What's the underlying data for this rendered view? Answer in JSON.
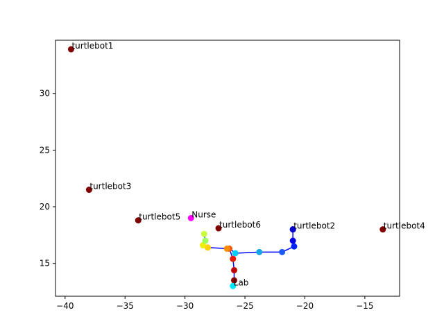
{
  "chart_data": {
    "type": "scatter",
    "title": "",
    "xlabel": "",
    "ylabel": "",
    "xlim": [
      -40.8,
      -12.1
    ],
    "ylim": [
      12.1,
      34.7
    ],
    "xticks": [
      -40,
      -35,
      -30,
      -25,
      -20,
      -15
    ],
    "yticks": [
      15,
      20,
      25,
      30
    ],
    "xtick_labels": [
      "−40",
      "−35",
      "−30",
      "−25",
      "−20",
      "−15"
    ],
    "ytick_labels": [
      "15",
      "20",
      "25",
      "30"
    ],
    "grid": false,
    "legend": "none",
    "labeled_points": [
      {
        "label": "turtlebot1",
        "x": -39.5,
        "y": 33.9,
        "color": "#800000"
      },
      {
        "label": "turtlebot3",
        "x": -38.0,
        "y": 21.5,
        "color": "#800000"
      },
      {
        "label": "turtlebot5",
        "x": -33.9,
        "y": 18.8,
        "color": "#800000"
      },
      {
        "label": "Nurse",
        "x": -29.5,
        "y": 19.0,
        "color": "#ff00ff"
      },
      {
        "label": "turtlebot6",
        "x": -27.2,
        "y": 18.1,
        "color": "#800000"
      },
      {
        "label": "turtlebot2",
        "x": -21.0,
        "y": 18.0,
        "color": "#0000cd"
      },
      {
        "label": "turtlebot4",
        "x": -13.5,
        "y": 18.0,
        "color": "#800000"
      },
      {
        "label": "Lab",
        "x": -26.0,
        "y": 13.0,
        "color": "#00e5ff"
      }
    ],
    "path": {
      "color": "#0000ff",
      "points": [
        {
          "x": -21.0,
          "y": 18.0,
          "color": "#0000cd"
        },
        {
          "x": -21.0,
          "y": 17.0,
          "color": "#0000e0"
        },
        {
          "x": -20.9,
          "y": 16.5,
          "color": "#0022ff"
        },
        {
          "x": -21.9,
          "y": 16.0,
          "color": "#1e5cff"
        },
        {
          "x": -23.8,
          "y": 16.0,
          "color": "#16a5e8"
        },
        {
          "x": -25.8,
          "y": 15.9,
          "color": "#00cfff"
        },
        {
          "x": -26.3,
          "y": 16.3,
          "color": "#ff5a00"
        },
        {
          "x": -26.5,
          "y": 16.3,
          "color": "#ff8c00"
        },
        {
          "x": -28.1,
          "y": 16.4,
          "color": "#ffd000"
        },
        {
          "x": -28.5,
          "y": 16.6,
          "color": "#f2ee00"
        },
        {
          "x": -28.3,
          "y": 17.0,
          "color": "#9dff5a"
        },
        {
          "x": -28.4,
          "y": 17.6,
          "color": "#c8ff3c"
        },
        {
          "x": -26.0,
          "y": 15.4,
          "color": "#e81a00"
        },
        {
          "x": -25.9,
          "y": 14.4,
          "color": "#c00000"
        },
        {
          "x": -25.9,
          "y": 13.5,
          "color": "#8c0000"
        }
      ]
    }
  }
}
